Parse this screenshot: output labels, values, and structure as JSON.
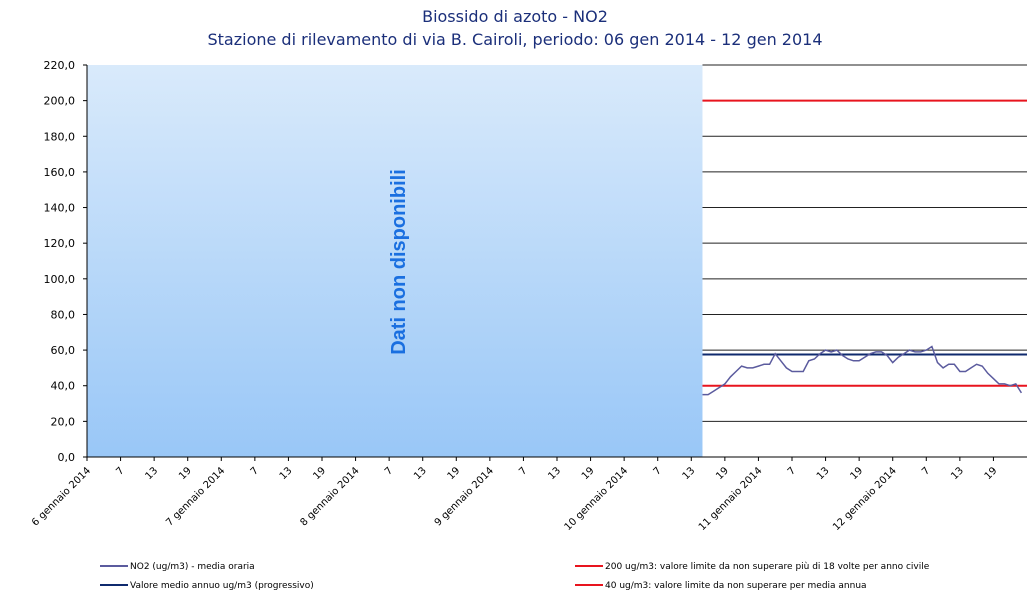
{
  "chart_data": {
    "type": "line",
    "title": "Biossido di azoto - NO2",
    "subtitle": "Stazione di rilevamento di via B. Cairoli, periodo: 06 gen 2014 - 12 gen 2014",
    "annotation": "Dati non disponibili",
    "categories": [
      "6 gennaio 2014",
      null,
      null,
      null,
      null,
      null,
      "7",
      null,
      null,
      null,
      null,
      null,
      "13",
      null,
      null,
      null,
      null,
      null,
      "19",
      null,
      null,
      null,
      null,
      null,
      "7 gennaio 2014",
      null,
      null,
      null,
      null,
      null,
      "7",
      null,
      null,
      null,
      null,
      null,
      "13",
      null,
      null,
      null,
      null,
      null,
      "19",
      null,
      null,
      null,
      null,
      null,
      "8 gennaio 2014",
      null,
      null,
      null,
      null,
      null,
      "7",
      null,
      null,
      null,
      null,
      null,
      "13",
      null,
      null,
      null,
      null,
      null,
      "19",
      null,
      null,
      null,
      null,
      null,
      "9 gennaio 2014",
      null,
      null,
      null,
      null,
      null,
      "7",
      null,
      null,
      null,
      null,
      null,
      "13",
      null,
      null,
      null,
      null,
      null,
      "19",
      null,
      null,
      null,
      null,
      null,
      "10 gennaio 2014",
      null,
      null,
      null,
      null,
      null,
      "7",
      null,
      null,
      null,
      null,
      null,
      "13",
      null,
      null,
      null,
      null,
      null,
      "19",
      null,
      null,
      null,
      null,
      null,
      "11 gennaio 2014",
      null,
      null,
      null,
      null,
      null,
      "7",
      null,
      null,
      null,
      null,
      null,
      "13",
      null,
      null,
      null,
      null,
      null,
      "19",
      null,
      null,
      null,
      null,
      null,
      "12 gennaio 2014",
      null,
      null,
      null,
      null,
      null,
      "7",
      null,
      null,
      null,
      null,
      null,
      "13",
      null,
      null,
      null,
      null,
      null,
      "19",
      null,
      null,
      null,
      null,
      null
    ],
    "series": [
      {
        "name": "NO2 (ug/m3)  - media oraria",
        "color": "#5b5b9e",
        "values": [
          null,
          null,
          null,
          null,
          null,
          null,
          null,
          null,
          null,
          null,
          null,
          null,
          null,
          null,
          null,
          null,
          null,
          null,
          null,
          null,
          null,
          null,
          null,
          null,
          null,
          null,
          null,
          null,
          null,
          null,
          null,
          null,
          null,
          null,
          null,
          null,
          null,
          null,
          null,
          null,
          null,
          null,
          null,
          null,
          null,
          null,
          null,
          null,
          null,
          null,
          null,
          null,
          null,
          null,
          null,
          null,
          null,
          null,
          null,
          null,
          null,
          null,
          null,
          null,
          null,
          null,
          null,
          null,
          null,
          null,
          null,
          null,
          null,
          null,
          null,
          null,
          null,
          null,
          null,
          null,
          null,
          null,
          null,
          null,
          null,
          null,
          null,
          null,
          null,
          null,
          null,
          null,
          null,
          null,
          null,
          null,
          null,
          null,
          null,
          null,
          null,
          null,
          null,
          null,
          null,
          null,
          null,
          null,
          null,
          null,
          35,
          35,
          37,
          39,
          41,
          45,
          48,
          51,
          50,
          50,
          51,
          52,
          52,
          58,
          54,
          50,
          48,
          48,
          48,
          54,
          55,
          58,
          60,
          59,
          60,
          57,
          55,
          54,
          54,
          56,
          58,
          59,
          59,
          57,
          53,
          56,
          58,
          60,
          59,
          59,
          60,
          62,
          53,
          50,
          52,
          52,
          48,
          48,
          50,
          52,
          51,
          47,
          44,
          41,
          41,
          40,
          41,
          36
        ]
      }
    ],
    "reference_lines": [
      {
        "name": "200 ug/m3: valore limite da non superare più di 18 volte per anno civile",
        "value": 200,
        "color": "#e8141e"
      },
      {
        "name": "Valore medio annuo ug/m3 (progressivo)",
        "value": 57.5,
        "color": "#0f2a6e"
      },
      {
        "name": "40 ug/m3: valore limite da non superare per media annua",
        "value": 40,
        "color": "#e8141e"
      }
    ],
    "ylim": [
      0,
      220
    ],
    "yticks": [
      {
        "value": 0,
        "label": "0,0"
      },
      {
        "value": 20,
        "label": "20,0"
      },
      {
        "value": 40,
        "label": "40,0"
      },
      {
        "value": 60,
        "label": "60,0"
      },
      {
        "value": 80,
        "label": "80,0"
      },
      {
        "value": 100,
        "label": "100,0"
      },
      {
        "value": 120,
        "label": "120,0"
      },
      {
        "value": 140,
        "label": "140,0"
      },
      {
        "value": 160,
        "label": "160,0"
      },
      {
        "value": 180,
        "label": "180,0"
      },
      {
        "value": 200,
        "label": "200,0"
      },
      {
        "value": 220,
        "label": "220,0"
      }
    ],
    "grid": true
  }
}
